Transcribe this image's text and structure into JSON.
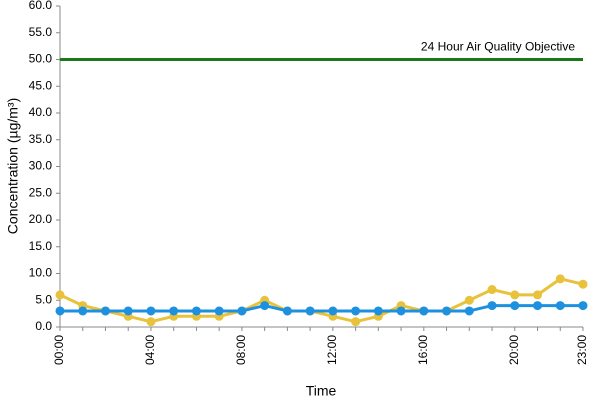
{
  "chart_data": {
    "type": "line",
    "xlabel": "Time",
    "ylabel": "Concentration (µg/m³)",
    "categories": [
      "00:00",
      null,
      null,
      null,
      "04:00",
      null,
      null,
      null,
      "08:00",
      null,
      null,
      null,
      "12:00",
      null,
      null,
      null,
      "16:00",
      null,
      null,
      null,
      "20:00",
      null,
      null,
      "23:00"
    ],
    "series": [
      {
        "color": "#e8c23a",
        "values": [
          6,
          4,
          3,
          2,
          1,
          2,
          2,
          2,
          3,
          5,
          3,
          3,
          2,
          1,
          2,
          4,
          3,
          3,
          5,
          7,
          6,
          6,
          9,
          8
        ]
      },
      {
        "color": "#1e90e0",
        "values": [
          3,
          3,
          3,
          3,
          3,
          3,
          3,
          3,
          3,
          4,
          3,
          3,
          3,
          3,
          3,
          3,
          3,
          3,
          3,
          4,
          4,
          4,
          4,
          4
        ]
      }
    ],
    "reference_line": {
      "value": 50,
      "label": "24 Hour Air Quality Objective",
      "color": "#1a7a1a"
    },
    "ylim": [
      0,
      60
    ],
    "yticks": [
      {
        "value": 0,
        "label": "0.0"
      },
      {
        "value": 5,
        "label": "5.0"
      },
      {
        "value": 10,
        "label": "10.0"
      },
      {
        "value": 15,
        "label": "15.0"
      },
      {
        "value": 20,
        "label": "20.0"
      },
      {
        "value": 25,
        "label": "25.0"
      },
      {
        "value": 30,
        "label": "30.0"
      },
      {
        "value": 35,
        "label": "35.0"
      },
      {
        "value": 40,
        "label": "40.0"
      },
      {
        "value": 45,
        "label": "45.0"
      },
      {
        "value": 50,
        "label": "50.0"
      },
      {
        "value": 55,
        "label": "55.0"
      },
      {
        "value": 60,
        "label": "60.0"
      }
    ],
    "grid": false
  }
}
